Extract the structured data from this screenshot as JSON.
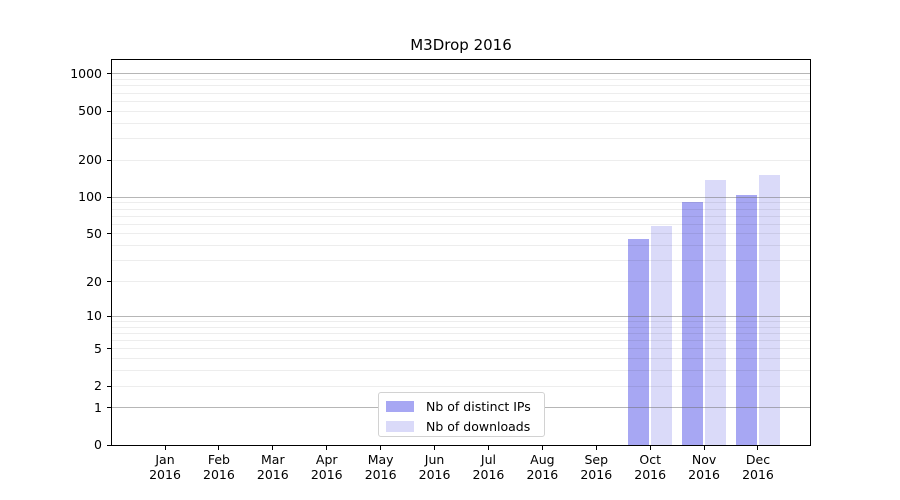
{
  "chart_data": {
    "type": "bar",
    "title": "M3Drop 2016",
    "categories": [
      "Jan 2016",
      "Feb 2016",
      "Mar 2016",
      "Apr 2016",
      "May 2016",
      "Jun 2016",
      "Jul 2016",
      "Aug 2016",
      "Sep 2016",
      "Oct 2016",
      "Nov 2016",
      "Dec 2016"
    ],
    "series": [
      {
        "name": "Nb of distinct IPs",
        "color": "#a7a7f3",
        "values": [
          0,
          0,
          0,
          0,
          0,
          0,
          0,
          0,
          0,
          45,
          92,
          105
        ]
      },
      {
        "name": "Nb of downloads",
        "color": "#dadaf9",
        "values": [
          0,
          0,
          0,
          0,
          0,
          0,
          0,
          0,
          0,
          58,
          137,
          152
        ]
      }
    ],
    "xlabel": "",
    "ylabel": "",
    "yscale": "log1p",
    "yticks": [
      0,
      1,
      2,
      5,
      10,
      20,
      50,
      100,
      200,
      500,
      1000
    ],
    "ylim": [
      0,
      1290
    ],
    "grid": {
      "on": true,
      "major_lines": [
        1,
        10,
        100,
        1000
      ],
      "minor_lines": [
        2,
        3,
        4,
        5,
        6,
        7,
        8,
        9,
        20,
        30,
        40,
        50,
        60,
        70,
        80,
        90,
        200,
        300,
        400,
        500,
        600,
        700,
        800,
        900
      ]
    },
    "legend": {
      "position": "lower center"
    },
    "colors": {
      "distinct_ips": "#a7a7f3",
      "downloads": "#dadaf9",
      "major_grid": "#b6b6b6",
      "minor_grid": "#ededed",
      "spine": "#000000"
    }
  }
}
